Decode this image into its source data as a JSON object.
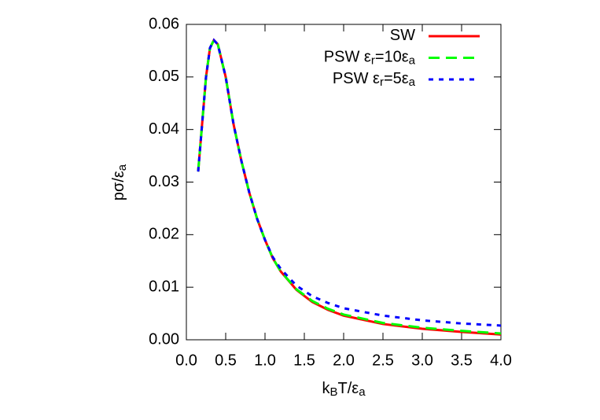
{
  "chart_data": {
    "type": "line",
    "xlabel": [
      "k",
      "B",
      "T/ε",
      "a"
    ],
    "ylabel": [
      "pσ/ε",
      "a"
    ],
    "x": [
      0.15,
      0.2,
      0.25,
      0.3,
      0.35,
      0.4,
      0.5,
      0.6,
      0.7,
      0.8,
      0.9,
      1.0,
      1.1,
      1.2,
      1.4,
      1.6,
      1.8,
      2.0,
      2.5,
      3.0,
      3.5,
      4.0
    ],
    "series": [
      {
        "name": [
          "SW"
        ],
        "color": "#ff0000",
        "style": "solid",
        "values": [
          0.032,
          0.041,
          0.05,
          0.0555,
          0.057,
          0.0562,
          0.05,
          0.041,
          0.034,
          0.028,
          0.023,
          0.019,
          0.0155,
          0.013,
          0.0095,
          0.0072,
          0.0057,
          0.0046,
          0.003,
          0.0021,
          0.0015,
          0.001
        ]
      },
      {
        "name": [
          "PSW ε",
          "r",
          "=10ε",
          "a"
        ],
        "color": "#00ff00",
        "style": "long-dash",
        "values": [
          0.032,
          0.041,
          0.05,
          0.0555,
          0.057,
          0.0562,
          0.05,
          0.041,
          0.034,
          0.028,
          0.023,
          0.019,
          0.0155,
          0.013,
          0.0096,
          0.0074,
          0.0059,
          0.0048,
          0.0032,
          0.0023,
          0.0017,
          0.0012
        ]
      },
      {
        "name": [
          "PSW ε",
          "r",
          "=5ε",
          "a"
        ],
        "color": "#0000ff",
        "style": "short-dash",
        "values": [
          0.032,
          0.041,
          0.05,
          0.0555,
          0.057,
          0.0562,
          0.05,
          0.041,
          0.034,
          0.028,
          0.023,
          0.019,
          0.0157,
          0.0135,
          0.0103,
          0.0083,
          0.007,
          0.006,
          0.0046,
          0.0037,
          0.0031,
          0.0027
        ]
      }
    ],
    "xlim": [
      0,
      4
    ],
    "xticks": [
      {
        "value": 0,
        "label": "0.0"
      },
      0.5,
      {
        "value": 1,
        "label": "1.0"
      },
      1.5,
      {
        "value": 2,
        "label": "2.0"
      },
      2.5,
      {
        "value": 3,
        "label": "3.0"
      },
      3.5,
      {
        "value": 4,
        "label": "4.0"
      }
    ],
    "ylim": [
      0,
      0.06
    ],
    "yticks": [
      {
        "value": 0,
        "label": "0.00"
      },
      0.01,
      0.02,
      0.03,
      0.04,
      0.05,
      0.06
    ],
    "grid": false,
    "legend": "top-right"
  }
}
